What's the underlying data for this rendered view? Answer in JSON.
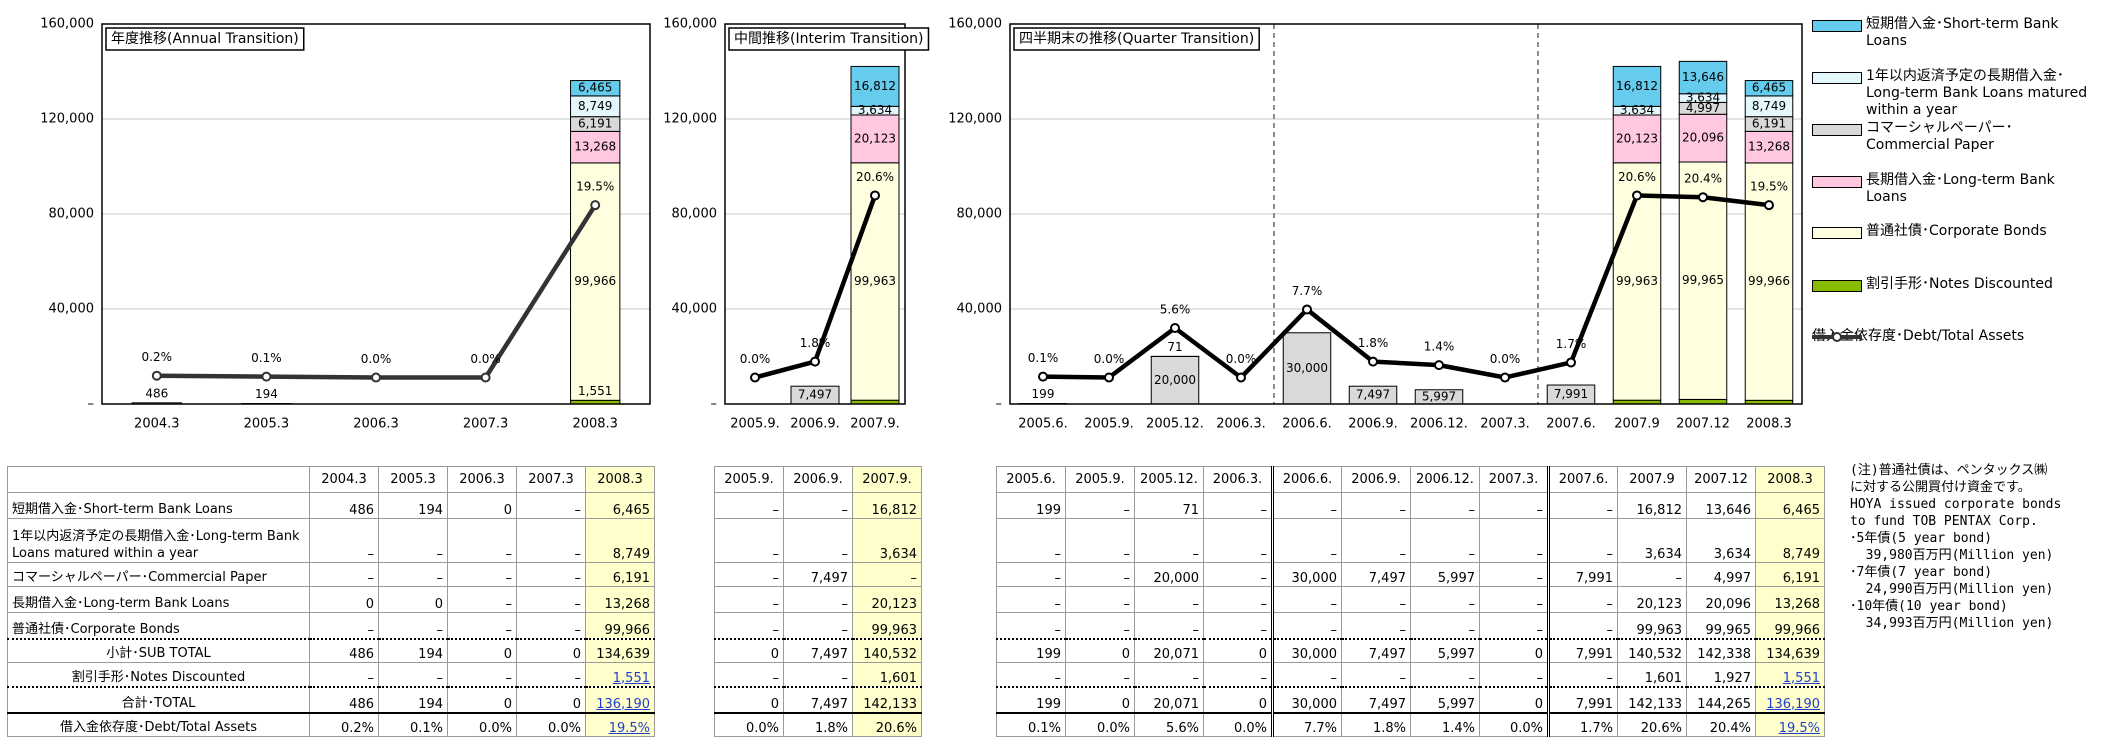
{
  "chart_data": [
    {
      "type": "bar",
      "stacked": true,
      "title": "年度推移(Annual Transition)",
      "categories": [
        "2004.3",
        "2005.3",
        "2006.3",
        "2007.3",
        "2008.3"
      ],
      "ylim": [
        0,
        160000
      ],
      "yticks": [
        {
          "value": 0,
          "label": "–"
        },
        {
          "value": 40000,
          "label": "40,000"
        },
        {
          "value": 80000,
          "label": "80,000"
        },
        {
          "value": 120000,
          "label": "120,000"
        },
        {
          "value": 160000,
          "label": "160,000"
        }
      ],
      "y2lim": [
        -3,
        40
      ],
      "grid": true,
      "series": [
        {
          "name": "短期借入金･Short-term Bank Loans",
          "color": "#66ccee",
          "values": [
            486,
            194,
            0,
            null,
            6465
          ],
          "value_labels": [
            "486",
            "194",
            null,
            null,
            "6,465"
          ]
        },
        {
          "name": "1年以内返済予定の長期借入金･Long-term Bank Loans matured within a year",
          "color": "#e4f7fc",
          "values": [
            null,
            null,
            null,
            null,
            8749
          ],
          "value_labels": [
            null,
            null,
            null,
            null,
            "8,749"
          ]
        },
        {
          "name": "コマーシャルペーパー･Commercial Paper",
          "color": "#d9d9d9",
          "values": [
            null,
            null,
            null,
            null,
            6191
          ],
          "value_labels": [
            null,
            null,
            null,
            null,
            "6,191"
          ]
        },
        {
          "name": "長期借入金･Long-term Bank Loans",
          "color": "#ffc8e0",
          "values": [
            0,
            0,
            null,
            null,
            13268
          ],
          "value_labels": [
            null,
            null,
            null,
            null,
            "13,268"
          ]
        },
        {
          "name": "普通社債･Corporate Bonds",
          "color": "#ffffe0",
          "values": [
            null,
            null,
            null,
            null,
            99966
          ],
          "value_labels": [
            null,
            null,
            null,
            null,
            "99,966"
          ]
        },
        {
          "name": "割引手形･Notes Discounted",
          "color": "#88bb00",
          "values": [
            null,
            null,
            null,
            null,
            1551
          ],
          "value_labels": [
            null,
            null,
            null,
            null,
            "1,551"
          ]
        },
        {
          "name": "借入金依存度･Debt/Total Assets",
          "type": "line",
          "axis": "y2",
          "color": "#333333",
          "values": [
            0.2,
            0.1,
            0.0,
            0.0,
            19.5
          ],
          "value_labels": [
            "0.2%",
            "0.1%",
            "0.0%",
            "0.0%",
            "19.5%"
          ]
        }
      ]
    },
    {
      "type": "bar",
      "stacked": true,
      "title": "中間推移(Interim Transition)",
      "categories": [
        "2005.9.",
        "2006.9.",
        "2007.9."
      ],
      "ylim": [
        0,
        160000
      ],
      "yticks": [
        {
          "value": 0,
          "label": "–"
        },
        {
          "value": 40000,
          "label": "40,000"
        },
        {
          "value": 80000,
          "label": "80,000"
        },
        {
          "value": 120000,
          "label": "120,000"
        },
        {
          "value": 160000,
          "label": "160,000"
        }
      ],
      "y2lim": [
        -3,
        40
      ],
      "grid": true,
      "series": [
        {
          "name": "短期借入金･Short-term Bank Loans",
          "color": "#66ccee",
          "values": [
            null,
            null,
            16812
          ],
          "value_labels": [
            null,
            null,
            "16,812"
          ]
        },
        {
          "name": "1年以内返済予定の長期借入金･Long-term Bank Loans matured within a year",
          "color": "#e4f7fc",
          "values": [
            null,
            null,
            3634
          ],
          "value_labels": [
            null,
            null,
            "3,634"
          ]
        },
        {
          "name": "コマーシャルペーパー･Commercial Paper",
          "color": "#d9d9d9",
          "values": [
            null,
            7497,
            null
          ],
          "value_labels": [
            null,
            "7,497",
            null
          ]
        },
        {
          "name": "長期借入金･Long-term Bank Loans",
          "color": "#ffc8e0",
          "values": [
            null,
            null,
            20123
          ],
          "value_labels": [
            null,
            null,
            "20,123"
          ]
        },
        {
          "name": "普通社債･Corporate Bonds",
          "color": "#ffffe0",
          "values": [
            null,
            null,
            99963
          ],
          "value_labels": [
            null,
            null,
            "99,963"
          ]
        },
        {
          "name": "割引手形･Notes Discounted",
          "color": "#88bb00",
          "values": [
            null,
            null,
            1601
          ]
        },
        {
          "name": "借入金依存度･Debt/Total Assets",
          "type": "line",
          "axis": "y2",
          "color": "#000000",
          "values": [
            0.0,
            1.8,
            20.6
          ],
          "value_labels": [
            "0.0%",
            "1.8%",
            "20.6%"
          ]
        }
      ]
    },
    {
      "type": "bar",
      "stacked": true,
      "title": "四半期末の推移(Quarter Transition)",
      "categories": [
        "2005.6.",
        "2005.9.",
        "2005.12.",
        "2006.3.",
        "2006.6.",
        "2006.9.",
        "2006.12.",
        "2007.3.",
        "2007.6.",
        "2007.9",
        "2007.12",
        "2008.3"
      ],
      "ylim": [
        0,
        160000
      ],
      "yticks": [
        {
          "value": 0,
          "label": "–"
        },
        {
          "value": 40000,
          "label": "40,000"
        },
        {
          "value": 80000,
          "label": "80,000"
        },
        {
          "value": 120000,
          "label": "120,000"
        },
        {
          "value": 160000,
          "label": "160,000"
        }
      ],
      "y2lim": [
        -3,
        40
      ],
      "grid": true,
      "series": [
        {
          "name": "短期借入金･Short-term Bank Loans",
          "color": "#66ccee",
          "values": [
            199,
            null,
            71,
            null,
            null,
            null,
            null,
            null,
            null,
            16812,
            13646,
            6465
          ],
          "value_labels": [
            "199",
            null,
            "71",
            null,
            null,
            null,
            null,
            null,
            null,
            "16,812",
            "13,646",
            "6,465"
          ]
        },
        {
          "name": "1年以内返済予定の長期借入金･Long-term Bank Loans matured within a year",
          "color": "#e4f7fc",
          "values": [
            null,
            null,
            null,
            null,
            null,
            null,
            null,
            null,
            null,
            3634,
            3634,
            8749
          ],
          "value_labels": [
            null,
            null,
            null,
            null,
            null,
            null,
            null,
            null,
            null,
            "3,634",
            "3,634",
            "8,749"
          ]
        },
        {
          "name": "コマーシャルペーパー･Commercial Paper",
          "color": "#d9d9d9",
          "values": [
            null,
            null,
            20000,
            null,
            30000,
            7497,
            5997,
            null,
            7991,
            null,
            4997,
            6191
          ],
          "value_labels": [
            null,
            null,
            "20,000",
            null,
            "30,000",
            "7,497",
            "5,997",
            null,
            "7,991",
            null,
            "4,997",
            "6,191"
          ]
        },
        {
          "name": "長期借入金･Long-term Bank Loans",
          "color": "#ffc8e0",
          "values": [
            null,
            null,
            null,
            null,
            null,
            null,
            null,
            null,
            null,
            20123,
            20096,
            13268
          ],
          "value_labels": [
            null,
            null,
            null,
            null,
            null,
            null,
            null,
            null,
            null,
            "20,123",
            "20,096",
            "13,268"
          ]
        },
        {
          "name": "普通社債･Corporate Bonds",
          "color": "#ffffe0",
          "values": [
            null,
            null,
            null,
            null,
            null,
            null,
            null,
            null,
            null,
            99963,
            99965,
            99966
          ],
          "value_labels": [
            null,
            null,
            null,
            null,
            null,
            null,
            null,
            null,
            null,
            "99,963",
            "99,965",
            "99,966"
          ]
        },
        {
          "name": "割引手形･Notes Discounted",
          "color": "#88bb00",
          "values": [
            null,
            null,
            null,
            null,
            null,
            null,
            null,
            null,
            null,
            1601,
            1927,
            1551
          ]
        },
        {
          "name": "借入金依存度･Debt/Total Assets",
          "type": "line",
          "axis": "y2",
          "color": "#000000",
          "values": [
            0.1,
            0.0,
            5.6,
            0.0,
            7.7,
            1.8,
            1.4,
            0.0,
            1.7,
            20.6,
            20.4,
            19.5
          ],
          "value_labels": [
            "0.1%",
            "0.0%",
            "5.6%",
            "0.0%",
            "7.7%",
            "1.8%",
            "1.4%",
            "0.0%",
            "1.7%",
            "20.6%",
            "20.4%",
            "19.5%"
          ]
        }
      ]
    }
  ],
  "tables": [
    {
      "columns": [
        "2004.3",
        "2005.3",
        "2006.3",
        "2007.3",
        "2008.3"
      ],
      "rows": [
        {
          "label": "短期借入金･Short-term Bank Loans",
          "cells": [
            "486",
            "194",
            "0",
            "–",
            "6,465"
          ]
        },
        {
          "label": "1年以内返済予定の長期借入金･Long-term Bank Loans matured within a year",
          "cells": [
            "–",
            "–",
            "–",
            "–",
            "8,749"
          ]
        },
        {
          "label": "コマーシャルペーパー･Commercial Paper",
          "cells": [
            "–",
            "–",
            "–",
            "–",
            "6,191"
          ]
        },
        {
          "label": "長期借入金･Long-term Bank Loans",
          "cells": [
            "0",
            "0",
            "–",
            "–",
            "13,268"
          ]
        },
        {
          "label": "普通社債･Corporate Bonds",
          "cells": [
            "–",
            "–",
            "–",
            "–",
            "99,966"
          ]
        },
        {
          "label": "小計･SUB TOTAL",
          "cells": [
            "486",
            "194",
            "0",
            "0",
            "134,639"
          ]
        },
        {
          "label": "割引手形･Notes Discounted",
          "cells": [
            "–",
            "–",
            "–",
            "–",
            "1,551"
          ]
        },
        {
          "label": "合計･TOTAL",
          "cells": [
            "486",
            "194",
            "0",
            "0",
            "136,190"
          ]
        },
        {
          "label": "借入金依存度･Debt/Total Assets",
          "cells": [
            "0.2%",
            "0.1%",
            "0.0%",
            "0.0%",
            "19.5%"
          ]
        }
      ]
    },
    {
      "columns": [
        "2005.9.",
        "2006.9.",
        "2007.9."
      ],
      "rows": [
        {
          "cells": [
            "–",
            "–",
            "16,812"
          ]
        },
        {
          "cells": [
            "–",
            "–",
            "3,634"
          ]
        },
        {
          "cells": [
            "–",
            "7,497",
            "–"
          ]
        },
        {
          "cells": [
            "–",
            "–",
            "20,123"
          ]
        },
        {
          "cells": [
            "–",
            "–",
            "99,963"
          ]
        },
        {
          "cells": [
            "0",
            "7,497",
            "140,532"
          ]
        },
        {
          "cells": [
            "–",
            "–",
            "1,601"
          ]
        },
        {
          "cells": [
            "0",
            "7,497",
            "142,133"
          ]
        },
        {
          "cells": [
            "0.0%",
            "1.8%",
            "20.6%"
          ]
        }
      ]
    },
    {
      "columns": [
        "2005.6.",
        "2005.9.",
        "2005.12.",
        "2006.3.",
        "2006.6.",
        "2006.9.",
        "2006.12.",
        "2007.3.",
        "2007.6.",
        "2007.9",
        "2007.12",
        "2008.3"
      ],
      "rows": [
        {
          "cells": [
            "199",
            "–",
            "71",
            "–",
            "–",
            "–",
            "–",
            "–",
            "–",
            "16,812",
            "13,646",
            "6,465"
          ]
        },
        {
          "cells": [
            "–",
            "–",
            "–",
            "–",
            "–",
            "–",
            "–",
            "–",
            "–",
            "3,634",
            "3,634",
            "8,749"
          ]
        },
        {
          "cells": [
            "–",
            "–",
            "20,000",
            "–",
            "30,000",
            "7,497",
            "5,997",
            "–",
            "7,991",
            "–",
            "4,997",
            "6,191"
          ]
        },
        {
          "cells": [
            "–",
            "–",
            "–",
            "–",
            "–",
            "–",
            "–",
            "–",
            "–",
            "20,123",
            "20,096",
            "13,268"
          ]
        },
        {
          "cells": [
            "–",
            "–",
            "–",
            "–",
            "–",
            "–",
            "–",
            "–",
            "–",
            "99,963",
            "99,965",
            "99,966"
          ]
        },
        {
          "cells": [
            "199",
            "0",
            "20,071",
            "0",
            "30,000",
            "7,497",
            "5,997",
            "0",
            "7,991",
            "140,532",
            "142,338",
            "134,639"
          ]
        },
        {
          "cells": [
            "–",
            "–",
            "–",
            "–",
            "–",
            "–",
            "–",
            "–",
            "–",
            "1,601",
            "1,927",
            "1,551"
          ]
        },
        {
          "cells": [
            "199",
            "0",
            "20,071",
            "0",
            "30,000",
            "7,497",
            "5,997",
            "0",
            "7,991",
            "142,133",
            "144,265",
            "136,190"
          ]
        },
        {
          "cells": [
            "0.1%",
            "0.0%",
            "5.6%",
            "0.0%",
            "7.7%",
            "1.8%",
            "1.4%",
            "0.0%",
            "1.7%",
            "20.6%",
            "20.4%",
            "19.5%"
          ]
        }
      ]
    }
  ],
  "note": [
    "(注)普通社債は、ペンタックス㈱",
    "に対する公開買付け資金です。",
    "HOYA issued corporate bonds",
    "to fund TOB PENTAX Corp.",
    "･5年債(5 year bond)",
    "  39,980百万円(Million yen)",
    "･7年債(7 year bond)",
    "  24,990百万円(Million yen)",
    "･10年債(10 year bond)",
    "  34,993百万円(Million yen)"
  ]
}
